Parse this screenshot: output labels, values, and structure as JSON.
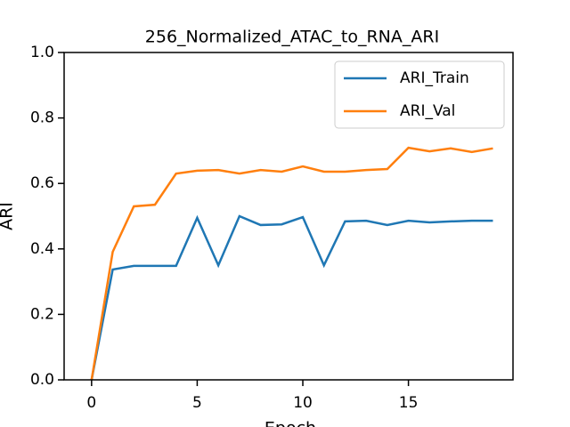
{
  "chart_data": {
    "type": "line",
    "title": "256_Normalized_ATAC_to_RNA_ARI",
    "xlabel": "Epoch",
    "ylabel": "ARI",
    "x": [
      0,
      1,
      2,
      3,
      4,
      5,
      6,
      7,
      8,
      9,
      10,
      11,
      12,
      13,
      14,
      15,
      16,
      17,
      18,
      19
    ],
    "series": [
      {
        "name": "ARI_Train",
        "color": "#1f77b4",
        "values": [
          0,
          0.337,
          0.348,
          0.348,
          0.348,
          0.495,
          0.35,
          0.5,
          0.473,
          0.475,
          0.497,
          0.35,
          0.484,
          0.486,
          0.473,
          0.486,
          0.481,
          0.484,
          0.486,
          0.486
        ]
      },
      {
        "name": "ARI_Val",
        "color": "#ff7f0e",
        "values": [
          0,
          0.391,
          0.53,
          0.535,
          0.63,
          0.639,
          0.641,
          0.63,
          0.641,
          0.636,
          0.652,
          0.636,
          0.636,
          0.641,
          0.644,
          0.709,
          0.698,
          0.707,
          0.696,
          0.707
        ]
      }
    ],
    "xlim": [
      -1.3,
      19.95
    ],
    "xticks": [
      0,
      5,
      10,
      15
    ],
    "ylim": [
      0,
      1
    ],
    "yticks": [
      {
        "value": 0,
        "label": "0.0"
      },
      0.2,
      0.4,
      0.6,
      0.8,
      {
        "value": 1,
        "label": "1.0"
      }
    ],
    "legend": "upper right"
  }
}
